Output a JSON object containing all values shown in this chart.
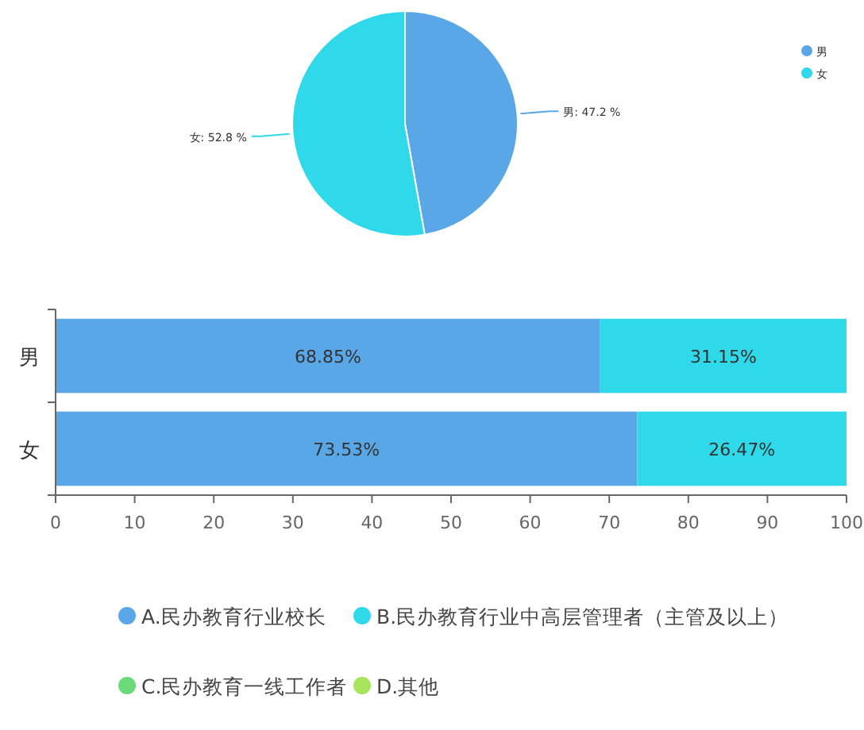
{
  "chart_data": [
    {
      "type": "pie",
      "categories": [
        "男",
        "女"
      ],
      "values": [
        47.2,
        52.8
      ],
      "colors": [
        "#5aa7e8",
        "#2fd9ea"
      ],
      "value_labels": [
        "男: 47.2 %",
        "女: 52.8 %"
      ],
      "legend": "top right"
    },
    {
      "type": "bar",
      "orientation": "horizontal",
      "stacked": true,
      "categories": [
        "男",
        "女"
      ],
      "series": [
        {
          "name": "A.民办教育行业校长",
          "color": "#5aa7e8",
          "values": [
            68.85,
            73.53
          ],
          "value_labels": [
            "68.85%",
            "73.53%"
          ]
        },
        {
          "name": "B.民办教育行业中高层管理者（主管及以上）",
          "color": "#2fd9ea",
          "values": [
            31.15,
            26.47
          ],
          "value_labels": [
            "31.15%",
            "26.47%"
          ]
        },
        {
          "name": "C.民办教育一线工作者",
          "color": "#6bd97a",
          "values": [
            null,
            null
          ]
        },
        {
          "name": "D.其他",
          "color": "#a8e35c",
          "values": [
            null,
            null
          ]
        }
      ],
      "xlim": [
        0,
        100
      ],
      "xticks": [
        0,
        10,
        20,
        30,
        40,
        50,
        60,
        70,
        80,
        90,
        100
      ],
      "legend": "bottom"
    }
  ]
}
